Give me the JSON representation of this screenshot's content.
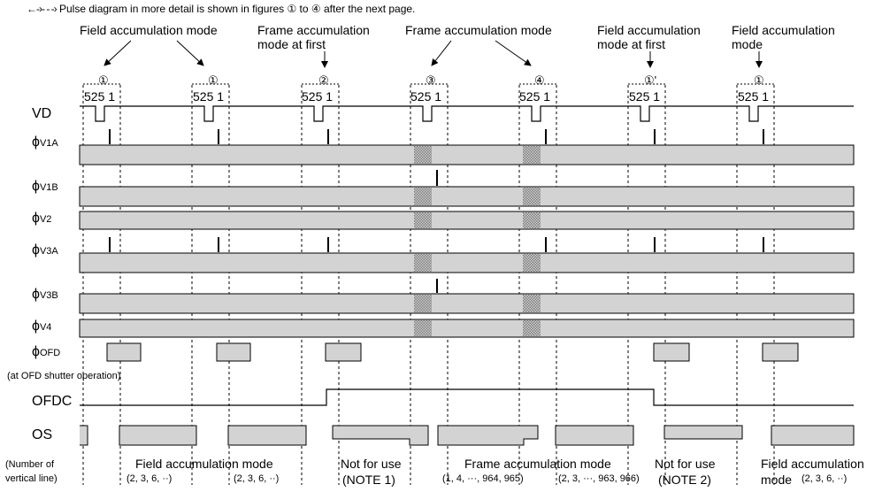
{
  "note": "Pulse diagram in more detail is shown in figures ① to ④ after the next page.",
  "top_labels": {
    "field_accum_1": "Field accumulation mode",
    "frame_accum_first_1": "Frame accumulation",
    "frame_accum_first_2": "mode at first",
    "frame_accum": "Frame accumulation mode",
    "field_accum_first_1": "Field accumulation",
    "field_accum_first_2": "mode at first",
    "field_accum_last_1": "Field accumulation",
    "field_accum_last_2": "mode"
  },
  "figure_markers": [
    "①",
    "①",
    "②",
    "③",
    "④",
    "①'",
    "①"
  ],
  "line_numbers": "525 1",
  "signals": {
    "vd": "VD",
    "phi": "ϕ",
    "v1a": "V1A",
    "v1b": "V1B",
    "v2": "V2",
    "v3a": "V3A",
    "v3b": "V3B",
    "v4": "V4",
    "ofd": "OFD",
    "ofd_note": "(at OFD shutter operation)",
    "ofdc": "OFDC",
    "os": "OS"
  },
  "bottom": {
    "number_of_1": "(Number of",
    "number_of_2": "vertical line)",
    "field_accum": "Field accumulation mode",
    "cnt_a": "(2, 3, 6, ··)",
    "cnt_b": "(2, 3, 6, ··)",
    "not_for_use": "Not for use",
    "note1": "(NOTE 1)",
    "frame_accum": "Frame accumulation mode",
    "cnt_frame_a": "(1, 4, ···, 964, 965)",
    "cnt_frame_b": "(2, 3, ···, 963, 966)",
    "not_for_use_2": "Not for use",
    "note2": "(NOTE 2)",
    "field_accum_last": "Field accumulation",
    "mode_word": "mode",
    "cnt_last": "(2, 3, 6, ··)"
  },
  "colors": {
    "fill_gray": "#d3d3d3",
    "stroke": "#000000",
    "hatch": "#8a8a8a"
  }
}
